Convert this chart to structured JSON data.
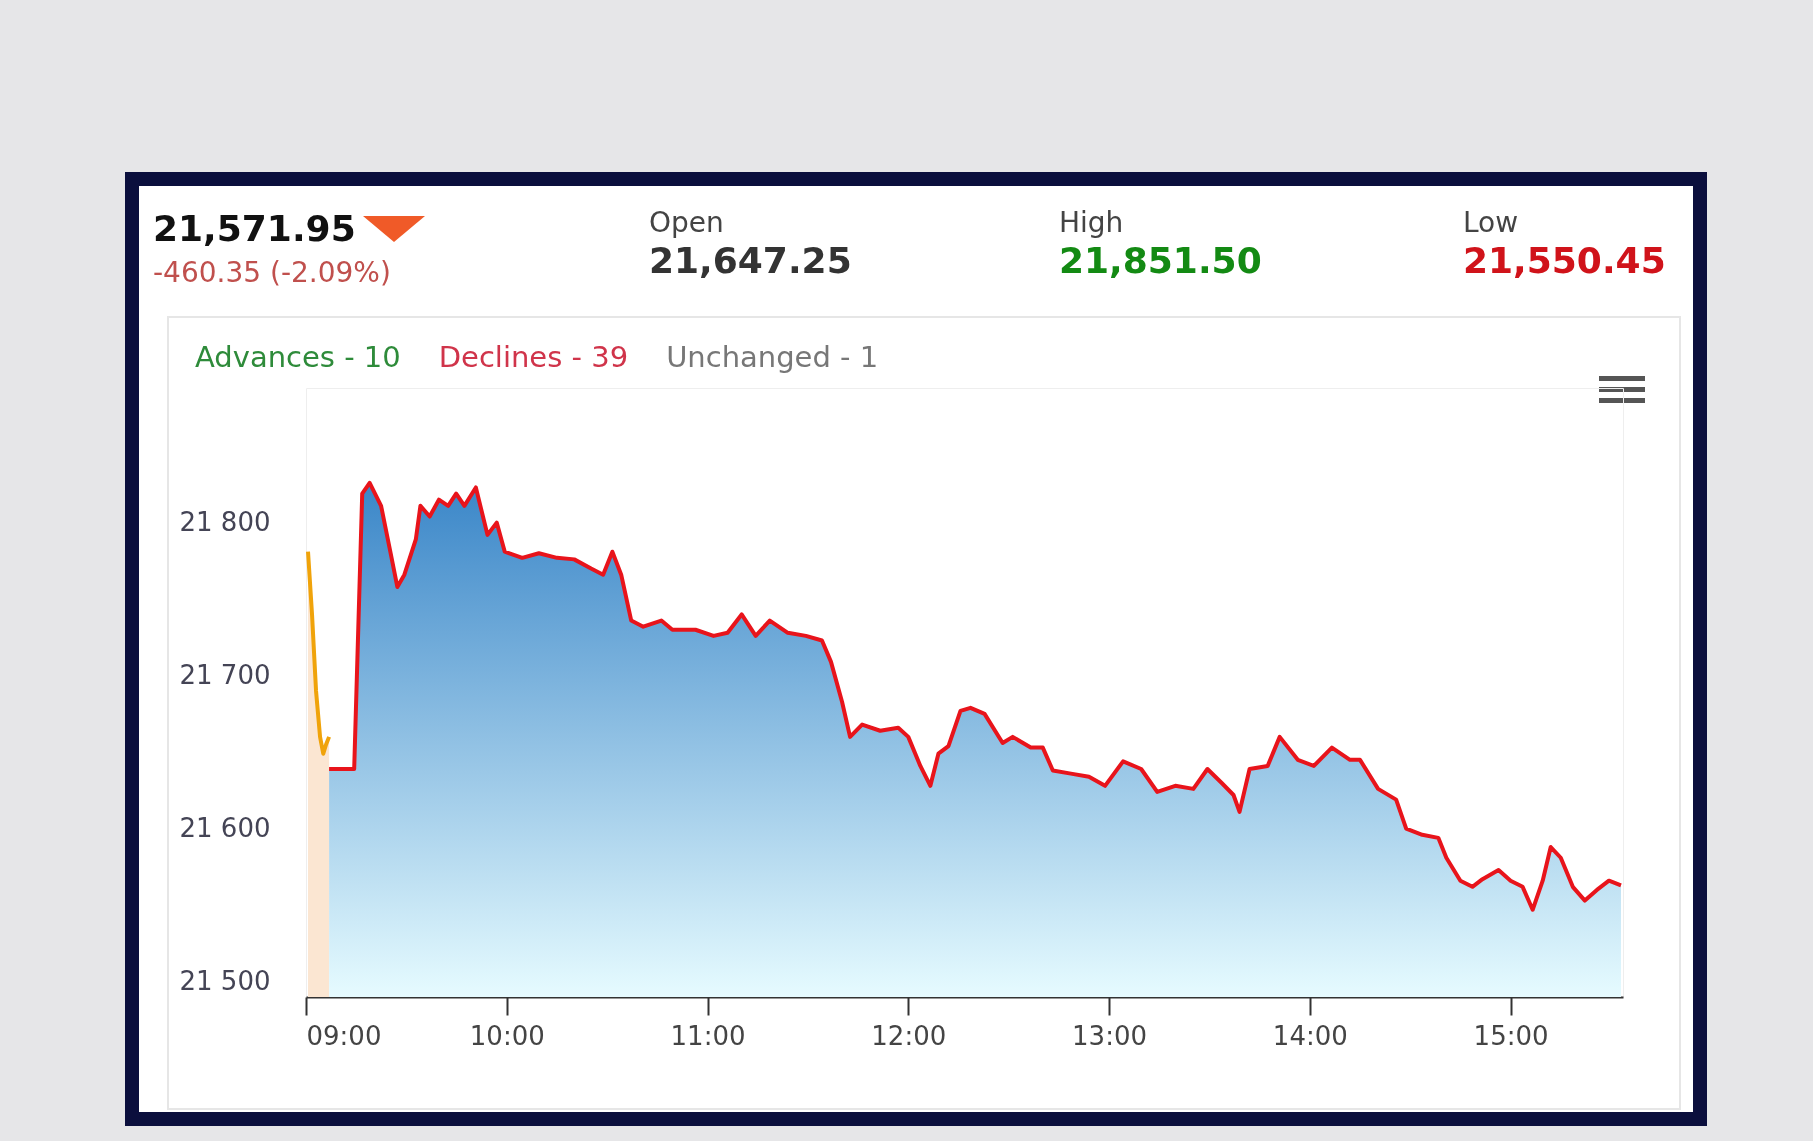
{
  "chart_data": {
    "type": "area",
    "annotations": [
      "21,571.95",
      "-460.35 (-2.09%)",
      "Open",
      "21,647.25",
      "High",
      "21,851.50",
      "Low",
      "21,550.45",
      "Advances - 10",
      "Declines - 39",
      "Unchanged - 1"
    ],
    "xlim": [
      9,
      15.56
    ],
    "ylim": [
      21490,
      21888
    ],
    "xticks": [
      {
        "value": 9,
        "label": "09:00"
      },
      {
        "value": 10,
        "label": "10:00"
      },
      {
        "value": 11,
        "label": "11:00"
      },
      {
        "value": 12,
        "label": "12:00"
      },
      {
        "value": 13,
        "label": "13:00"
      },
      {
        "value": 14,
        "label": "14:00"
      },
      {
        "value": 15,
        "label": "15:00"
      }
    ],
    "yticks": [
      {
        "value": 21500,
        "label": "21 500"
      },
      {
        "value": 21600,
        "label": "21 600"
      },
      {
        "value": 21700,
        "label": "21 700"
      },
      {
        "value": 21800,
        "label": "21 800"
      }
    ],
    "series": [
      {
        "color": "#f0a30a",
        "x": [
          9.01,
          9.03,
          9.05,
          9.07,
          9.086,
          9.1,
          9.115
        ],
        "values": [
          21781,
          21740,
          21690,
          21660,
          21649,
          21655,
          21660
        ]
      },
      {
        "color": "#e8141b",
        "x": [
          9.115,
          9.24,
          9.28,
          9.317,
          9.374,
          9.42,
          9.455,
          9.49,
          9.547,
          9.57,
          9.616,
          9.662,
          9.708,
          9.748,
          9.789,
          9.846,
          9.904,
          9.95,
          9.99,
          10.077,
          10.16,
          10.25,
          10.336,
          10.42,
          10.48,
          10.526,
          10.57,
          10.62,
          10.68,
          10.77,
          10.825,
          10.94,
          11.03,
          11.1,
          11.17,
          11.24,
          11.31,
          11.4,
          11.49,
          11.57,
          11.615,
          11.67,
          11.71,
          11.77,
          11.86,
          11.95,
          12.0,
          12.06,
          12.11,
          12.15,
          12.2,
          12.26,
          12.31,
          12.38,
          12.47,
          12.52,
          12.61,
          12.67,
          12.72,
          12.81,
          12.9,
          12.98,
          13.07,
          13.16,
          13.24,
          13.33,
          13.42,
          13.49,
          13.56,
          13.62,
          13.65,
          13.7,
          13.79,
          13.85,
          13.94,
          14.02,
          14.11,
          14.2,
          14.25,
          14.34,
          14.43,
          14.48,
          14.56,
          14.64,
          14.68,
          14.75,
          14.81,
          14.86,
          14.94,
          15.0,
          15.06,
          15.11,
          15.16,
          15.2,
          15.25,
          15.31,
          15.37,
          15.43,
          15.49,
          15.55
        ],
        "values": [
          21639,
          21639,
          21819,
          21826,
          21811,
          21781,
          21758,
          21766,
          21789,
          21811,
          21804,
          21815,
          21811,
          21819,
          21811,
          21823,
          21792,
          21800,
          21781,
          21777,
          21780,
          21777,
          21776,
          21770,
          21766,
          21781,
          21766,
          21736,
          21732,
          21736,
          21730,
          21730,
          21726,
          21728,
          21740,
          21726,
          21736,
          21728,
          21726,
          21723,
          21709,
          21683,
          21660,
          21668,
          21664,
          21666,
          21660,
          21641,
          21628,
          21649,
          21654,
          21677,
          21679,
          21675,
          21656,
          21660,
          21653,
          21653,
          21638,
          21636,
          21634,
          21628,
          21644,
          21639,
          21624,
          21628,
          21626,
          21639,
          21630,
          21622,
          21611,
          21639,
          21641,
          21660,
          21645,
          21641,
          21653,
          21645,
          21645,
          21626,
          21619,
          21600,
          21596,
          21594,
          21581,
          21566,
          21562,
          21567,
          21573,
          21566,
          21562,
          21547,
          21566,
          21588,
          21581,
          21562,
          21553,
          21560,
          21566,
          21563
        ]
      }
    ]
  }
}
